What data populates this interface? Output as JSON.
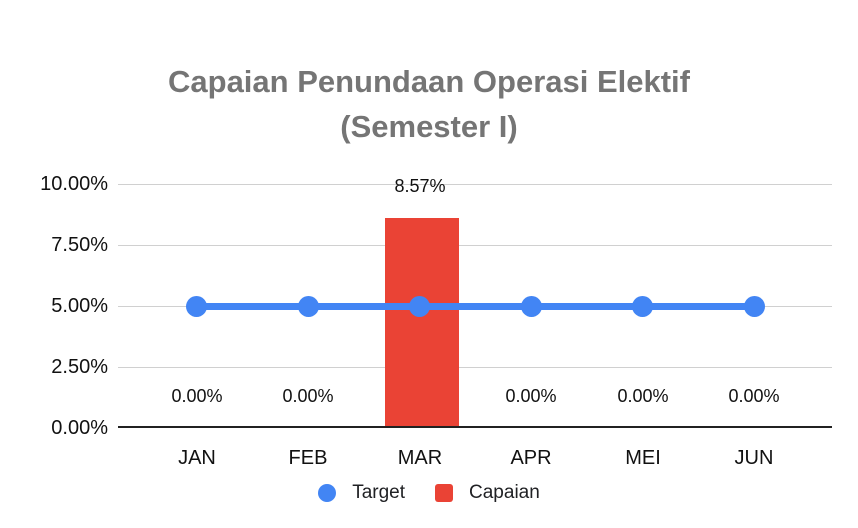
{
  "title_lines": [
    "Capaian Penundaan Operasi Elektif",
    "(Semester I)"
  ],
  "y_axis_ticks": [
    "10.00%",
    "7.50%",
    "5.00%",
    "2.50%",
    "0.00%"
  ],
  "value_labels": {
    "jan": "0.00%",
    "feb": "0.00%",
    "mar": "8.57%",
    "apr": "0.00%",
    "mei": "0.00%",
    "jun": "0.00%"
  },
  "colors": {
    "target_blue": "#4285F4",
    "capaian_red": "#EA4335",
    "title_gray": "#757575",
    "gridline_gray": "#d0d0d0",
    "axis_baseline": "#212121"
  },
  "chart_data": {
    "type": "combo",
    "title": "Capaian Penundaan Operasi Elektif (Semester I)",
    "categories": [
      "JAN",
      "FEB",
      "MAR",
      "APR",
      "MEI",
      "JUN"
    ],
    "series": [
      {
        "name": "Target",
        "type": "line",
        "color": "#4285F4",
        "values_pct": [
          5.0,
          5.0,
          5.0,
          5.0,
          5.0,
          5.0
        ]
      },
      {
        "name": "Capaian",
        "type": "bar",
        "color": "#EA4335",
        "values_pct": [
          0.0,
          0.0,
          8.57,
          0.0,
          0.0,
          0.0
        ]
      }
    ],
    "xlabel": "",
    "ylabel": "",
    "ylim": [
      0,
      10
    ],
    "yticks_pct": [
      0,
      2.5,
      5,
      7.5,
      10
    ],
    "grid": true,
    "legend_position": "bottom"
  }
}
